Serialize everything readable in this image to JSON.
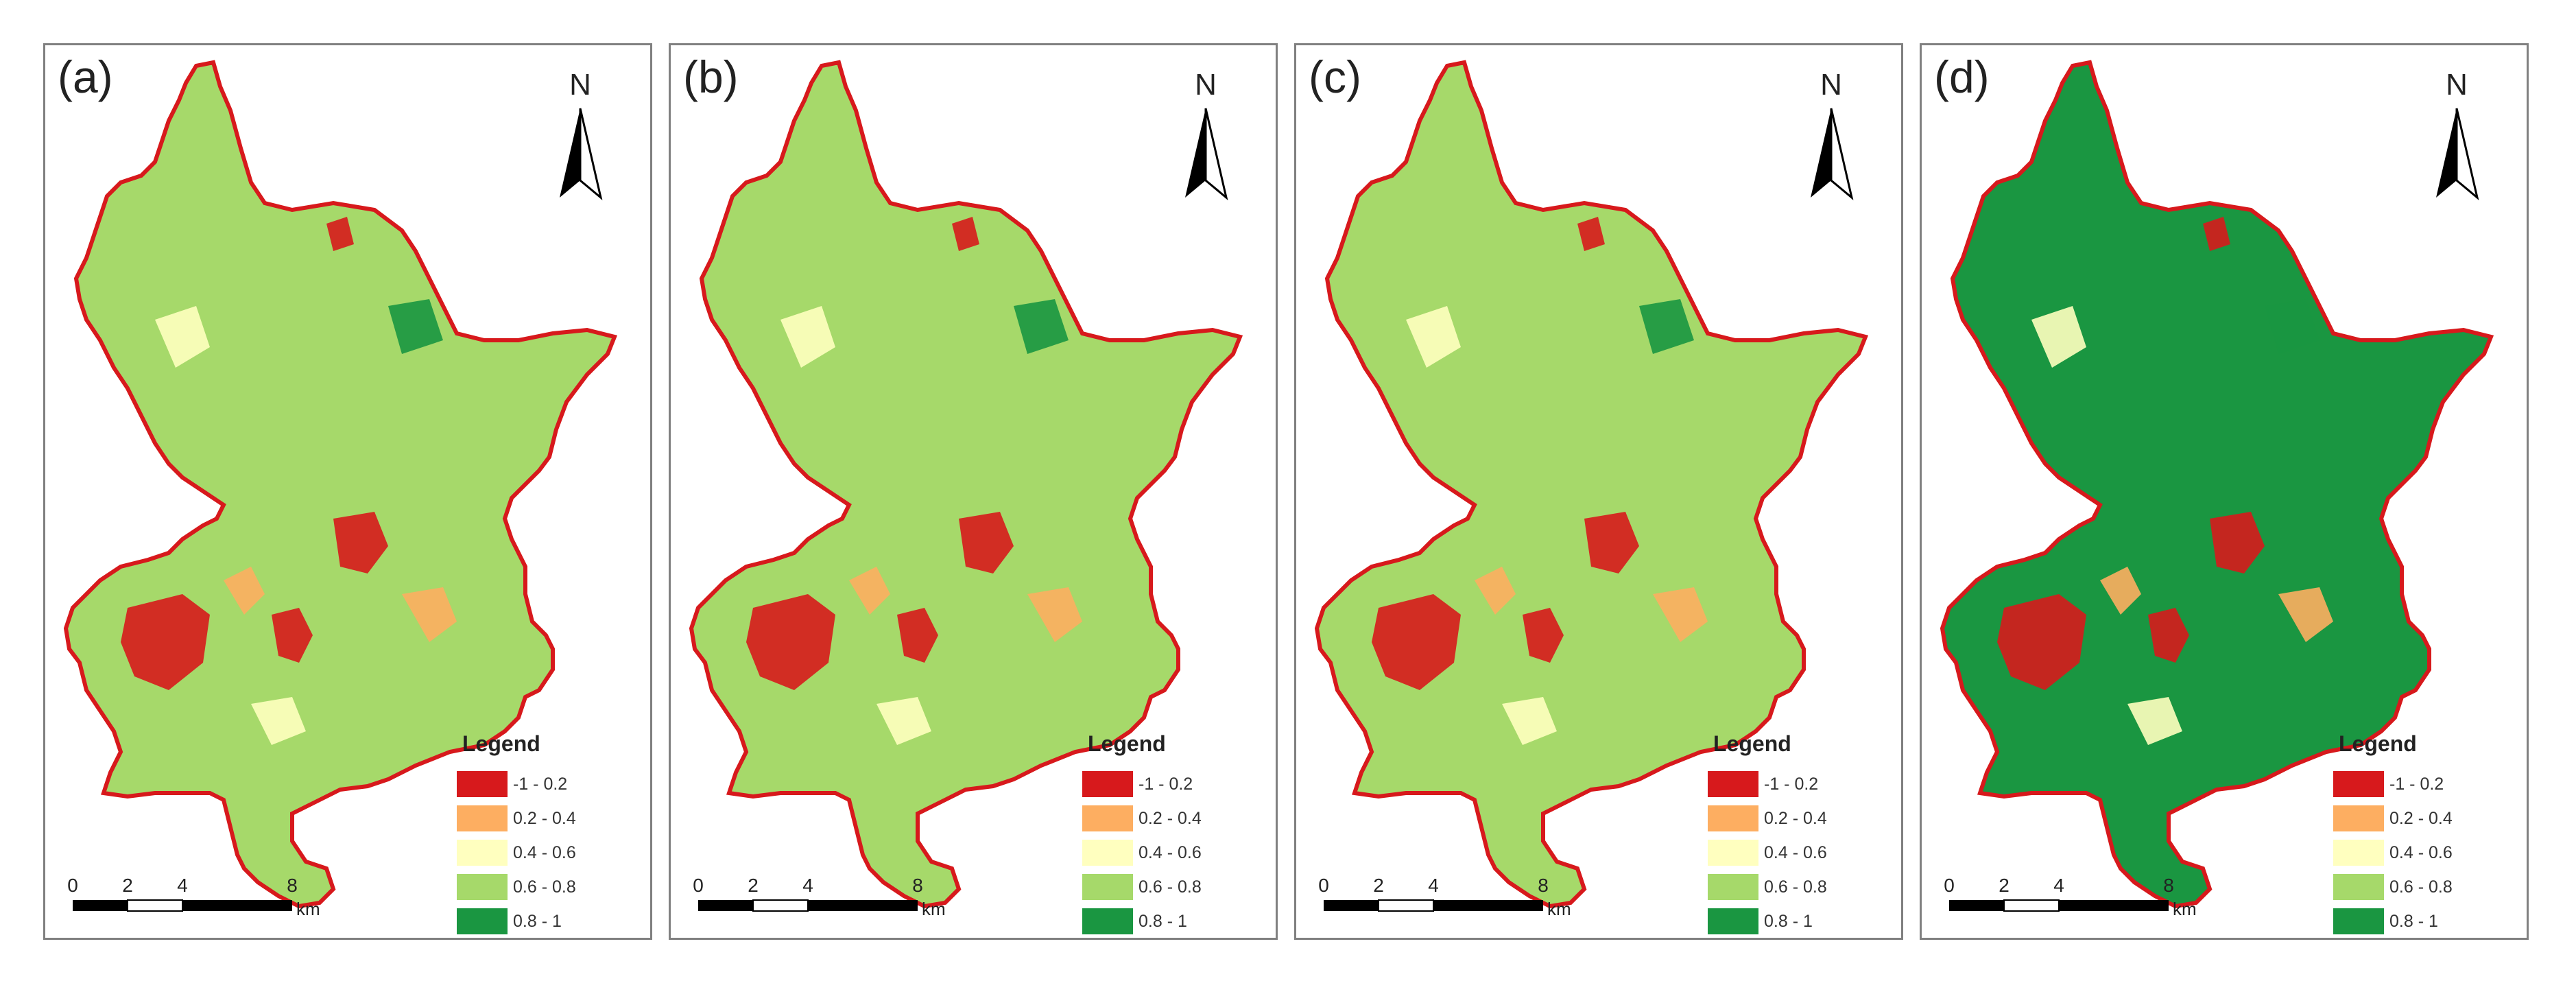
{
  "legend_title": "Legend",
  "north_label": "N",
  "scale": {
    "ticks": [
      "0",
      "2",
      "4",
      "8"
    ],
    "unit": "km"
  },
  "legend_classes": [
    {
      "label": "-1 - 0.2",
      "color": "#d7191c"
    },
    {
      "label": "0.2 - 0.4",
      "color": "#fdae61"
    },
    {
      "label": "0.4 - 0.6",
      "color": "#ffffbf"
    },
    {
      "label": "0.6 - 0.8",
      "color": "#a6d96a"
    },
    {
      "label": "0.8 - 1",
      "color": "#1a9641"
    }
  ],
  "panels": [
    {
      "label": "(a)",
      "dominant_color": "#a6d96a"
    },
    {
      "label": "(b)",
      "dominant_color": "#a6d96a"
    },
    {
      "label": "(c)",
      "dominant_color": "#a6d96a"
    },
    {
      "label": "(d)",
      "dominant_color": "#1a9641"
    }
  ]
}
